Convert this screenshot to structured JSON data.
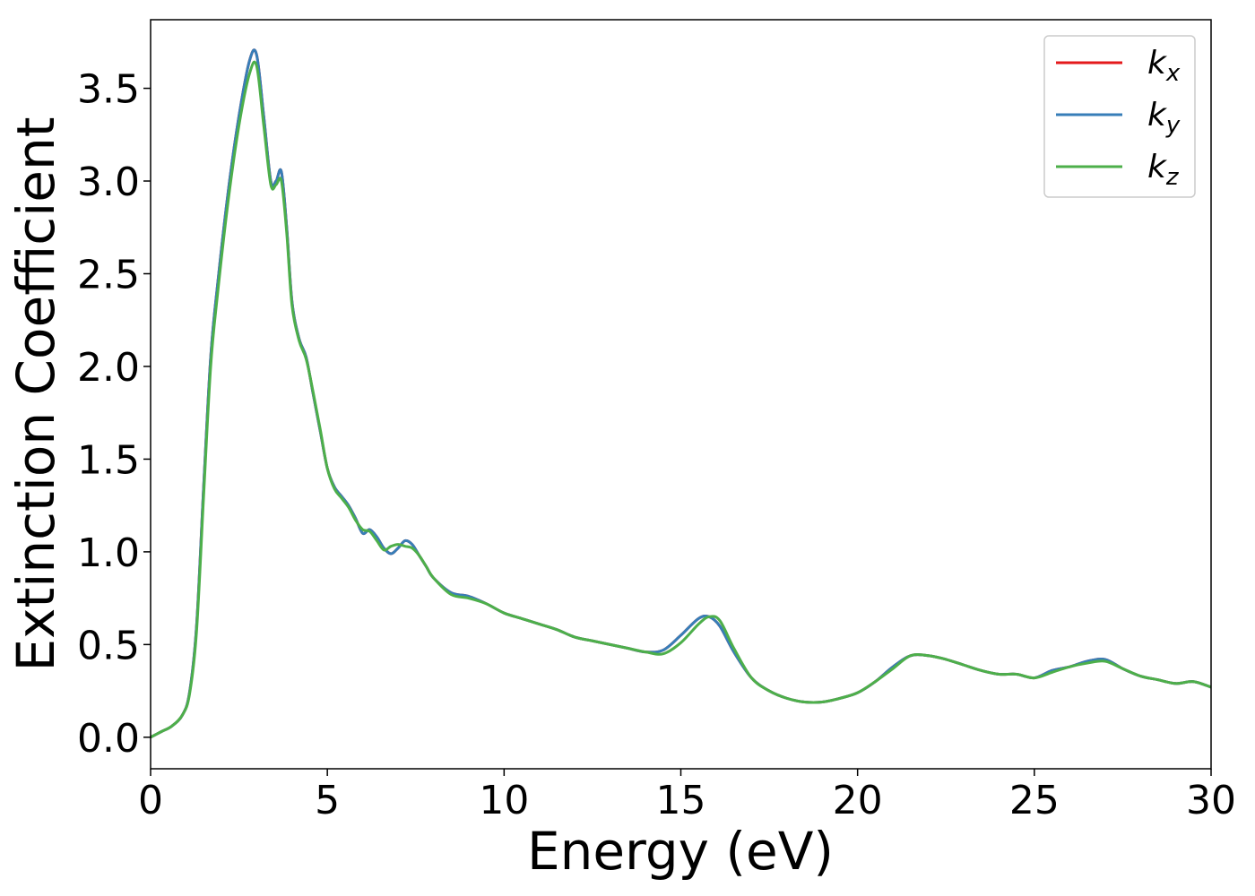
{
  "chart_data": {
    "type": "line",
    "title": "",
    "xlabel": "Energy (eV)",
    "ylabel": "Extinction Coefficient",
    "xlim": [
      0,
      30
    ],
    "ylim": [
      -0.17,
      3.87
    ],
    "xticks": [
      0,
      5,
      10,
      15,
      20,
      25,
      30
    ],
    "xtick_labels": [
      "0",
      "5",
      "10",
      "15",
      "20",
      "25",
      "30"
    ],
    "yticks": [
      0.0,
      0.5,
      1.0,
      1.5,
      2.0,
      2.5,
      3.0,
      3.5
    ],
    "ytick_labels": [
      "0.0",
      "0.5",
      "1.0",
      "1.5",
      "2.0",
      "2.5",
      "3.0",
      "3.5"
    ],
    "grid": false,
    "legend_position": "top-right",
    "legend": [
      {
        "base": "k",
        "sub": "x"
      },
      {
        "base": "k",
        "sub": "y"
      },
      {
        "base": "k",
        "sub": "z"
      }
    ],
    "x": [
      0,
      0.3,
      0.6,
      0.9,
      1.1,
      1.3,
      1.5,
      1.7,
      1.9,
      2.2,
      2.5,
      2.8,
      3.0,
      3.2,
      3.4,
      3.55,
      3.7,
      3.85,
      4.0,
      4.2,
      4.4,
      4.6,
      4.8,
      5.0,
      5.2,
      5.4,
      5.6,
      5.8,
      6.0,
      6.2,
      6.4,
      6.6,
      6.8,
      7.0,
      7.2,
      7.4,
      7.6,
      7.8,
      8.0,
      8.5,
      9.0,
      9.5,
      10.0,
      10.5,
      11.0,
      11.5,
      12.0,
      12.5,
      13.0,
      13.5,
      14.0,
      14.5,
      15.0,
      15.5,
      15.8,
      16.1,
      16.5,
      17.0,
      17.5,
      18.0,
      18.5,
      19.0,
      19.5,
      20.0,
      20.5,
      21.0,
      21.5,
      22.0,
      22.5,
      23.0,
      23.5,
      24.0,
      24.5,
      25.0,
      25.5,
      26.0,
      26.5,
      27.0,
      27.5,
      28.0,
      28.5,
      29.0,
      29.5,
      30.0
    ],
    "series": [
      {
        "name": "kx",
        "color": "#e41a1c",
        "values": [
          0.0,
          0.03,
          0.06,
          0.12,
          0.24,
          0.6,
          1.35,
          2.05,
          2.45,
          2.95,
          3.35,
          3.65,
          3.68,
          3.35,
          3.0,
          3.0,
          3.05,
          2.75,
          2.35,
          2.15,
          2.05,
          1.85,
          1.65,
          1.45,
          1.35,
          1.3,
          1.25,
          1.18,
          1.1,
          1.12,
          1.08,
          1.02,
          0.99,
          1.02,
          1.06,
          1.04,
          0.98,
          0.92,
          0.86,
          0.78,
          0.76,
          0.72,
          0.67,
          0.64,
          0.61,
          0.58,
          0.54,
          0.52,
          0.5,
          0.48,
          0.46,
          0.47,
          0.55,
          0.64,
          0.65,
          0.6,
          0.46,
          0.32,
          0.25,
          0.21,
          0.19,
          0.19,
          0.21,
          0.24,
          0.3,
          0.38,
          0.44,
          0.44,
          0.42,
          0.39,
          0.36,
          0.34,
          0.34,
          0.32,
          0.36,
          0.38,
          0.41,
          0.42,
          0.37,
          0.33,
          0.31,
          0.29,
          0.3,
          0.27
        ]
      },
      {
        "name": "ky",
        "color": "#377eb8",
        "values": [
          0.0,
          0.03,
          0.06,
          0.12,
          0.24,
          0.6,
          1.35,
          2.05,
          2.45,
          2.95,
          3.35,
          3.65,
          3.68,
          3.35,
          3.0,
          3.0,
          3.05,
          2.75,
          2.35,
          2.15,
          2.05,
          1.85,
          1.65,
          1.45,
          1.35,
          1.3,
          1.25,
          1.18,
          1.1,
          1.12,
          1.08,
          1.02,
          0.99,
          1.02,
          1.06,
          1.04,
          0.98,
          0.92,
          0.86,
          0.78,
          0.76,
          0.72,
          0.67,
          0.64,
          0.61,
          0.58,
          0.54,
          0.52,
          0.5,
          0.48,
          0.46,
          0.47,
          0.55,
          0.64,
          0.65,
          0.6,
          0.46,
          0.32,
          0.25,
          0.21,
          0.19,
          0.19,
          0.21,
          0.24,
          0.3,
          0.38,
          0.44,
          0.44,
          0.42,
          0.39,
          0.36,
          0.34,
          0.34,
          0.32,
          0.36,
          0.38,
          0.41,
          0.42,
          0.37,
          0.33,
          0.31,
          0.29,
          0.3,
          0.27
        ]
      },
      {
        "name": "kz",
        "color": "#4daf4a",
        "values": [
          0.0,
          0.03,
          0.06,
          0.12,
          0.23,
          0.57,
          1.3,
          2.0,
          2.4,
          2.9,
          3.3,
          3.58,
          3.62,
          3.3,
          2.98,
          2.98,
          3.0,
          2.72,
          2.33,
          2.14,
          2.04,
          1.86,
          1.66,
          1.45,
          1.34,
          1.29,
          1.24,
          1.17,
          1.12,
          1.11,
          1.06,
          1.01,
          1.03,
          1.04,
          1.03,
          1.02,
          0.98,
          0.92,
          0.86,
          0.77,
          0.75,
          0.72,
          0.67,
          0.64,
          0.61,
          0.58,
          0.54,
          0.52,
          0.5,
          0.48,
          0.46,
          0.45,
          0.51,
          0.61,
          0.65,
          0.63,
          0.48,
          0.32,
          0.25,
          0.21,
          0.19,
          0.19,
          0.21,
          0.24,
          0.3,
          0.37,
          0.44,
          0.44,
          0.42,
          0.39,
          0.36,
          0.34,
          0.34,
          0.32,
          0.35,
          0.38,
          0.4,
          0.41,
          0.37,
          0.33,
          0.31,
          0.29,
          0.3,
          0.27
        ]
      }
    ]
  }
}
